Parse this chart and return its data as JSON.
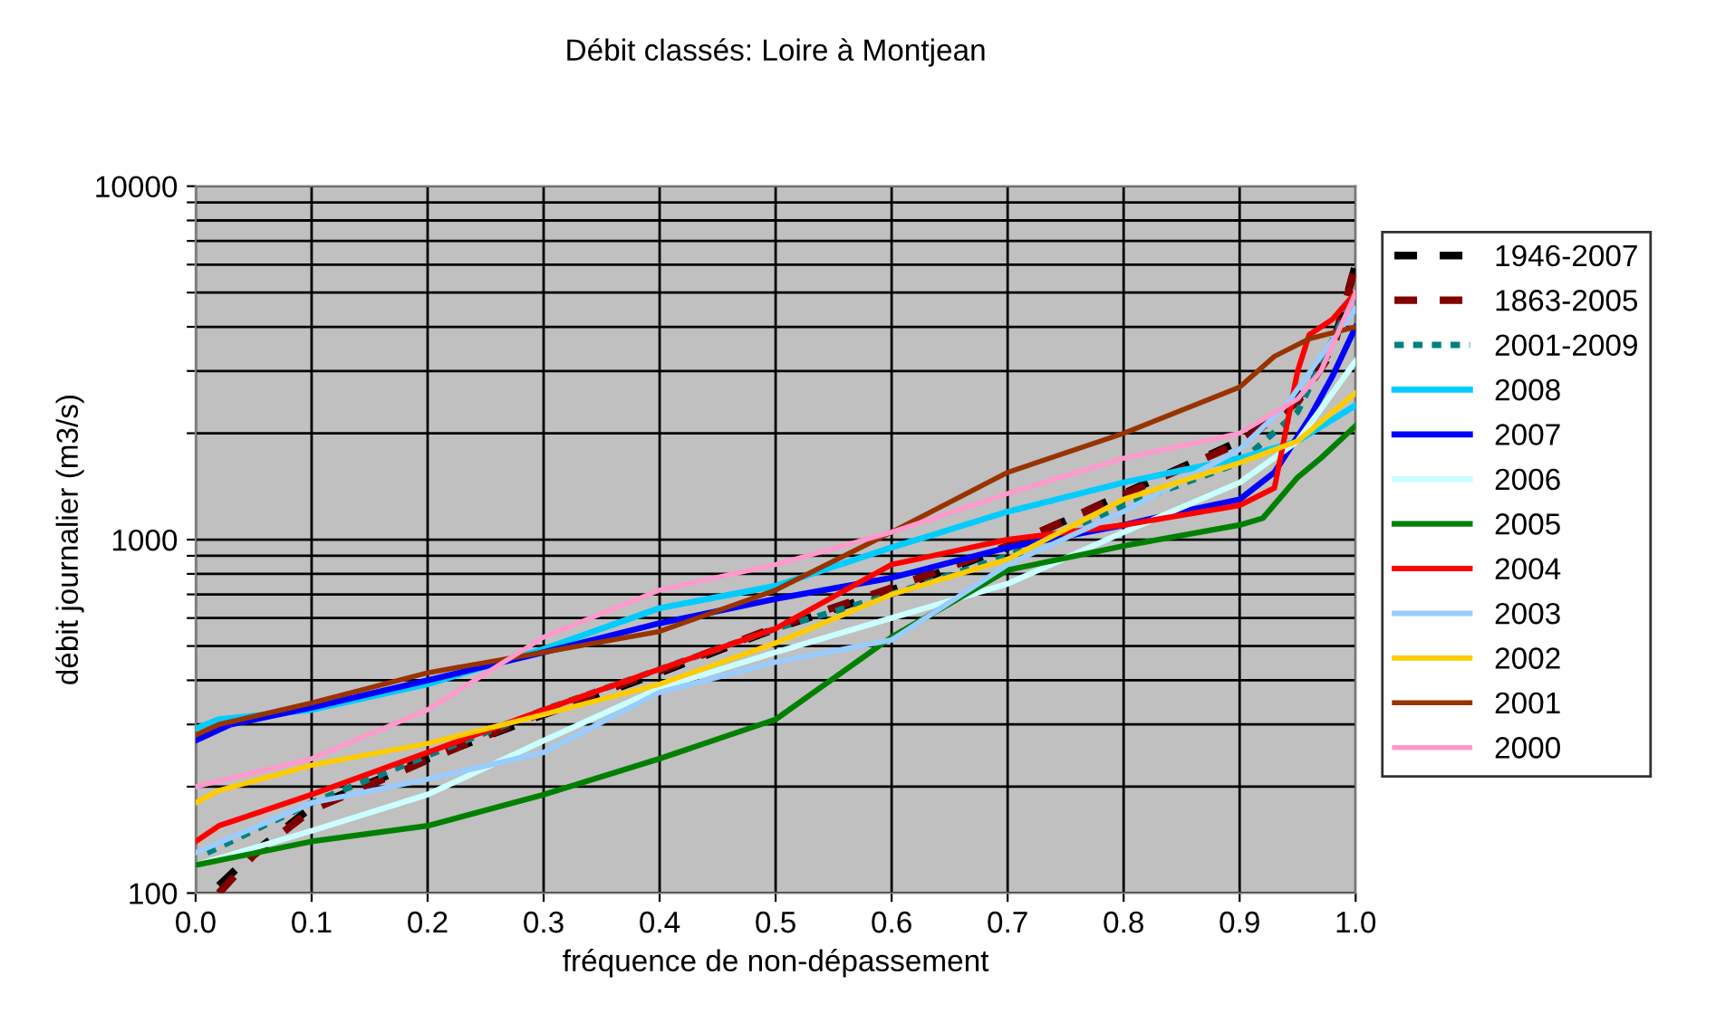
{
  "chart_data": {
    "type": "line",
    "title": "Débit classés: Loire à Montjean",
    "xlabel": "fréquence de non-dépassement",
    "ylabel": "débit journalier (m3/s)",
    "log": "y",
    "grid": true,
    "legend": "right",
    "marker": "none",
    "xlim": [
      0.0,
      1.0
    ],
    "xticks": [
      {
        "value": 0,
        "label": "0.0"
      },
      {
        "value": 0.1,
        "label": "0.1"
      },
      {
        "value": 0.2,
        "label": "0.2"
      },
      {
        "value": 0.3,
        "label": "0.3"
      },
      {
        "value": 0.4,
        "label": "0.4"
      },
      {
        "value": 0.5,
        "label": "0.5"
      },
      {
        "value": 0.6,
        "label": "0.6"
      },
      {
        "value": 0.7,
        "label": "0.7"
      },
      {
        "value": 0.8,
        "label": "0.8"
      },
      {
        "value": 0.9,
        "label": "0.9"
      },
      {
        "value": 1,
        "label": "1.0"
      }
    ],
    "ylim": [
      100,
      10000
    ],
    "yticks": [
      100,
      {
        "value": 200,
        "label": null
      },
      {
        "value": 300,
        "label": null
      },
      {
        "value": 400,
        "label": null
      },
      {
        "value": 500,
        "label": null
      },
      {
        "value": 600,
        "label": null
      },
      {
        "value": 700,
        "label": null
      },
      {
        "value": 800,
        "label": null
      },
      {
        "value": 900,
        "label": null
      },
      1000,
      {
        "value": 2000,
        "label": null
      },
      {
        "value": 3000,
        "label": null
      },
      {
        "value": 4000,
        "label": null
      },
      {
        "value": 5000,
        "label": null
      },
      {
        "value": 6000,
        "label": null
      },
      {
        "value": 7000,
        "label": null
      },
      {
        "value": 8000,
        "label": null
      },
      {
        "value": 9000,
        "label": null
      },
      10000
    ],
    "series": [
      {
        "name": "1946-2007",
        "color": "#000000",
        "line_style": "dashed",
        "x": [
          0.02,
          0.05,
          0.1,
          0.2,
          0.3,
          0.4,
          0.5,
          0.6,
          0.7,
          0.8,
          0.9,
          0.95,
          0.98,
          1.0
        ],
        "values": [
          105,
          130,
          175,
          240,
          320,
          420,
          560,
          720,
          950,
          1350,
          1900,
          2500,
          3500,
          6000
        ]
      },
      {
        "name": "1863-2005",
        "color": "#800000",
        "line_style": "dashed",
        "x": [
          0.02,
          0.05,
          0.1,
          0.2,
          0.3,
          0.4,
          0.5,
          0.6,
          0.7,
          0.8,
          0.9,
          0.95,
          0.98,
          1.0
        ],
        "values": [
          100,
          128,
          172,
          238,
          325,
          425,
          565,
          730,
          960,
          1340,
          1880,
          2450,
          3400,
          6000
        ]
      },
      {
        "name": "2001-2009",
        "color": "#008080",
        "line_style": "dotted",
        "x": [
          0.01,
          0.1,
          0.2,
          0.3,
          0.4,
          0.5,
          0.6,
          0.7,
          0.8,
          0.9,
          0.95,
          1.0
        ],
        "values": [
          130,
          180,
          245,
          330,
          430,
          560,
          700,
          900,
          1250,
          1650,
          2300,
          5000
        ]
      },
      {
        "name": "2008",
        "color": "#00ccff",
        "line_style": "solid",
        "x": [
          0,
          0.02,
          0.1,
          0.2,
          0.3,
          0.4,
          0.5,
          0.6,
          0.7,
          0.8,
          0.9,
          0.95,
          1.0
        ],
        "values": [
          292,
          310,
          330,
          390,
          490,
          640,
          740,
          950,
          1200,
          1450,
          1700,
          1900,
          2400
        ]
      },
      {
        "name": "2007",
        "color": "#0000ff",
        "line_style": "solid",
        "x": [
          0,
          0.03,
          0.1,
          0.2,
          0.3,
          0.4,
          0.5,
          0.6,
          0.7,
          0.8,
          0.85,
          0.9,
          0.93,
          0.96,
          0.98,
          1.0
        ],
        "values": [
          270,
          300,
          335,
          400,
          480,
          580,
          680,
          780,
          950,
          1100,
          1200,
          1300,
          1550,
          2200,
          2900,
          4000
        ]
      },
      {
        "name": "2006",
        "color": "#ccffff",
        "line_style": "solid",
        "x": [
          0,
          0.1,
          0.2,
          0.3,
          0.4,
          0.5,
          0.6,
          0.7,
          0.8,
          0.9,
          0.95,
          1.0
        ],
        "values": [
          120,
          150,
          190,
          270,
          380,
          480,
          600,
          750,
          1050,
          1450,
          1900,
          3200
        ]
      },
      {
        "name": "2005",
        "color": "#008000",
        "line_style": "solid",
        "x": [
          0,
          0.1,
          0.2,
          0.3,
          0.4,
          0.5,
          0.6,
          0.7,
          0.8,
          0.9,
          0.92,
          0.95,
          0.97,
          1.0
        ],
        "values": [
          120,
          140,
          155,
          190,
          240,
          310,
          530,
          820,
          960,
          1100,
          1150,
          1500,
          1700,
          2100
        ]
      },
      {
        "name": "2004",
        "color": "#ff0000",
        "line_style": "solid",
        "x": [
          0,
          0.02,
          0.1,
          0.2,
          0.3,
          0.4,
          0.5,
          0.6,
          0.7,
          0.8,
          0.9,
          0.93,
          0.95,
          0.96,
          0.98,
          1.0
        ],
        "values": [
          140,
          155,
          190,
          250,
          330,
          430,
          560,
          850,
          1000,
          1100,
          1250,
          1400,
          3000,
          3800,
          4200,
          5000
        ]
      },
      {
        "name": "2003",
        "color": "#99ccff",
        "line_style": "solid",
        "x": [
          0,
          0.1,
          0.2,
          0.3,
          0.4,
          0.5,
          0.6,
          0.7,
          0.8,
          0.9,
          0.94,
          0.97,
          1.0
        ],
        "values": [
          130,
          180,
          210,
          250,
          370,
          450,
          520,
          850,
          1200,
          1800,
          2400,
          3300,
          4500
        ]
      },
      {
        "name": "2002",
        "color": "#ffcc00",
        "line_style": "solid",
        "x": [
          0,
          0.02,
          0.1,
          0.2,
          0.3,
          0.4,
          0.5,
          0.6,
          0.7,
          0.8,
          0.9,
          0.95,
          1.0
        ],
        "values": [
          180,
          195,
          230,
          265,
          320,
          390,
          510,
          700,
          880,
          1300,
          1650,
          1900,
          2600
        ]
      },
      {
        "name": "2001",
        "color": "#993300",
        "line_style": "solid",
        "x": [
          0,
          0.02,
          0.1,
          0.2,
          0.3,
          0.4,
          0.5,
          0.6,
          0.7,
          0.8,
          0.9,
          0.93,
          0.96,
          1.0
        ],
        "values": [
          280,
          300,
          345,
          420,
          480,
          550,
          720,
          1050,
          1550,
          2000,
          2700,
          3300,
          3700,
          4000
        ]
      },
      {
        "name": "2000",
        "color": "#ff99cc",
        "line_style": "solid",
        "x": [
          0,
          0.1,
          0.2,
          0.3,
          0.4,
          0.5,
          0.6,
          0.7,
          0.8,
          0.9,
          0.95,
          0.97,
          1.0
        ],
        "values": [
          200,
          240,
          330,
          530,
          720,
          850,
          1050,
          1350,
          1700,
          2000,
          2500,
          3000,
          5000
        ]
      }
    ]
  }
}
